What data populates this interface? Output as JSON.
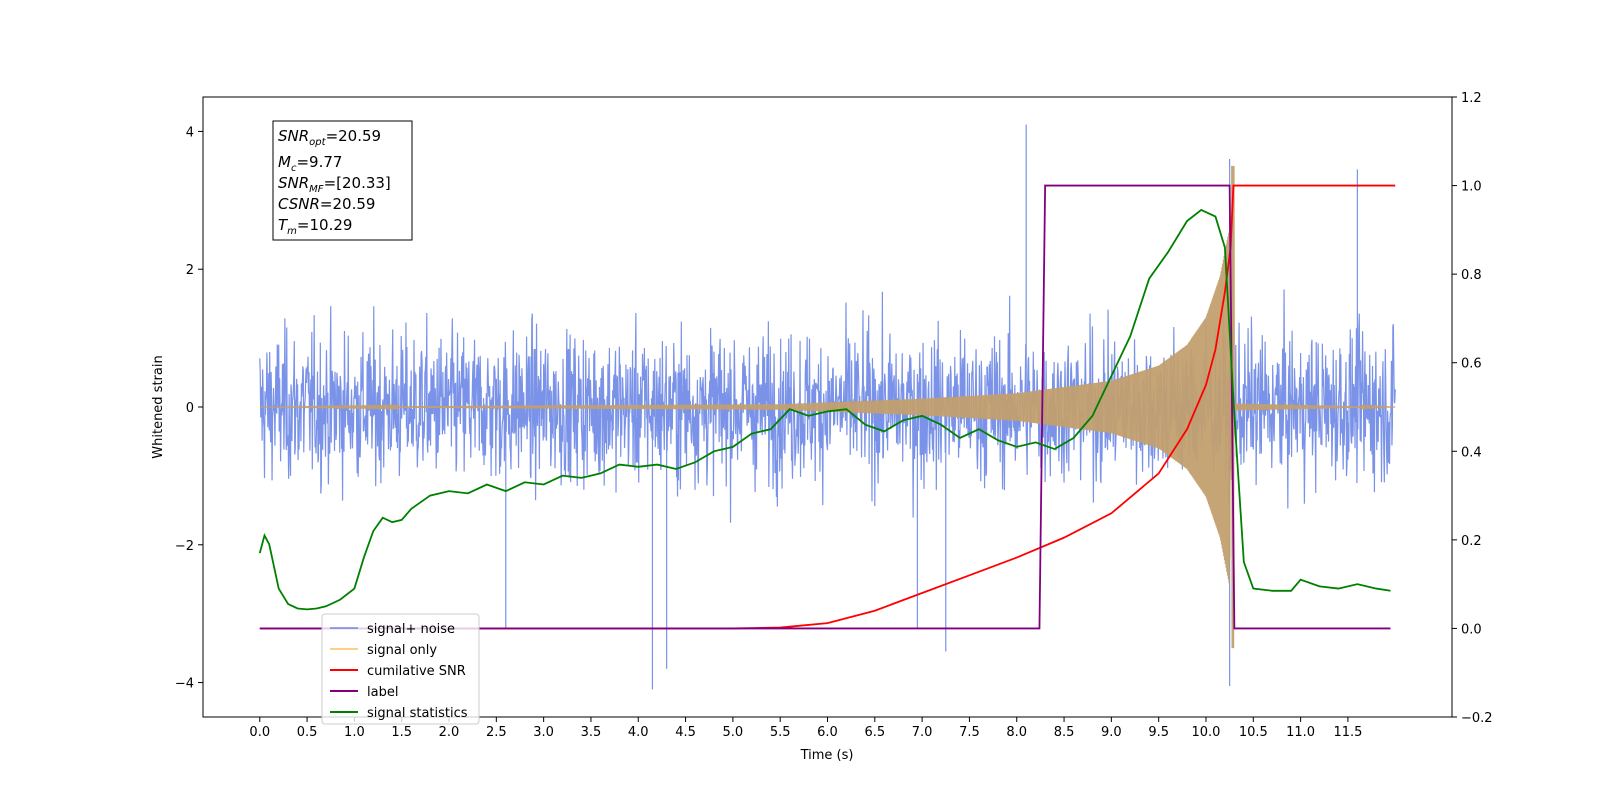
{
  "chart_data": {
    "type": "line",
    "xlabel": "Time (s)",
    "ylabel": "Whitened strain",
    "xlim": [
      -0.6,
      12.6
    ],
    "ylim_left": [
      -4.5,
      4.5
    ],
    "ylim_right": [
      -0.2,
      1.2
    ],
    "x_ticks": [
      "0.0",
      "0.5",
      "1.0",
      "1.5",
      "2.0",
      "2.5",
      "3.0",
      "3.5",
      "4.0",
      "4.5",
      "5.0",
      "5.5",
      "6.0",
      "6.5",
      "7.0",
      "7.5",
      "8.0",
      "8.5",
      "9.0",
      "9.5",
      "10.0",
      "10.5",
      "11.0",
      "11.5"
    ],
    "y_ticks_left": [
      "−4",
      "−2",
      "0",
      "2",
      "4"
    ],
    "y_ticks_right": [
      "−0.2",
      "0.0",
      "0.2",
      "0.4",
      "0.6",
      "0.8",
      "1.0",
      "1.2"
    ],
    "grid": false,
    "legend_position": "lower-left",
    "annotation": {
      "snr_opt": {
        "name": "SNR",
        "sub": "opt",
        "value": "=20.59"
      },
      "mc": {
        "name": "M",
        "sub": "c",
        "value": "=9.77"
      },
      "snr_mf": {
        "name": "SNR",
        "sub": "MF",
        "value": "=[20.33]"
      },
      "csnr": {
        "name": "CSNR",
        "value": "=20.59"
      },
      "tm": {
        "name": "T",
        "sub": "m",
        "value": "=10.29"
      }
    },
    "series": [
      {
        "name": "signal+ noise",
        "axis": "left",
        "color": "#6b87e6",
        "x_range": [
          0.0,
          12.0
        ],
        "envelope_typical": [
          -1.8,
          1.9
        ],
        "spikes": [
          [
            2.6,
            -3.2
          ],
          [
            4.15,
            -4.1
          ],
          [
            4.3,
            -3.8
          ],
          [
            8.1,
            4.1
          ],
          [
            10.25,
            3.6
          ],
          [
            10.25,
            -4.05
          ],
          [
            11.6,
            3.45
          ],
          [
            6.95,
            -3.2
          ],
          [
            7.25,
            -3.55
          ]
        ]
      },
      {
        "name": "signal only",
        "axis": "left",
        "color": "#c29f6f",
        "description_points": [
          [
            0,
            0.0
          ],
          [
            5.5,
            0.04
          ],
          [
            7.0,
            0.12
          ],
          [
            8.0,
            0.2
          ],
          [
            9.0,
            0.38
          ],
          [
            9.5,
            0.6
          ],
          [
            9.8,
            0.9
          ],
          [
            10.0,
            1.3
          ],
          [
            10.15,
            1.9
          ],
          [
            10.25,
            2.6
          ],
          [
            10.28,
            -3.5
          ],
          [
            10.3,
            0.05
          ],
          [
            12.0,
            0.0
          ]
        ]
      },
      {
        "name": "cumilative SNR",
        "axis": "right",
        "color": "#ff0000",
        "points": [
          [
            0.0,
            0.0
          ],
          [
            5.0,
            0.0
          ],
          [
            5.5,
            0.002
          ],
          [
            6.0,
            0.012
          ],
          [
            6.5,
            0.04
          ],
          [
            7.0,
            0.08
          ],
          [
            7.5,
            0.12
          ],
          [
            8.0,
            0.16
          ],
          [
            8.5,
            0.205
          ],
          [
            9.0,
            0.26
          ],
          [
            9.5,
            0.35
          ],
          [
            9.8,
            0.45
          ],
          [
            10.0,
            0.55
          ],
          [
            10.1,
            0.63
          ],
          [
            10.2,
            0.76
          ],
          [
            10.26,
            0.86
          ],
          [
            10.29,
            1.0
          ],
          [
            12.0,
            1.0
          ]
        ]
      },
      {
        "name": "label",
        "axis": "right",
        "color": "#800080",
        "points": [
          [
            0.0,
            0.0
          ],
          [
            8.24,
            0.0
          ],
          [
            8.3,
            1.0
          ],
          [
            10.25,
            1.0
          ],
          [
            10.3,
            0.0
          ],
          [
            11.95,
            0.0
          ]
        ]
      },
      {
        "name": "signal statistics",
        "axis": "right",
        "color": "#008000",
        "points": [
          [
            0.0,
            0.17
          ],
          [
            0.05,
            0.21
          ],
          [
            0.1,
            0.19
          ],
          [
            0.2,
            0.09
          ],
          [
            0.3,
            0.055
          ],
          [
            0.4,
            0.045
          ],
          [
            0.5,
            0.043
          ],
          [
            0.6,
            0.045
          ],
          [
            0.7,
            0.05
          ],
          [
            0.85,
            0.065
          ],
          [
            1.0,
            0.09
          ],
          [
            1.1,
            0.16
          ],
          [
            1.2,
            0.22
          ],
          [
            1.3,
            0.25
          ],
          [
            1.4,
            0.24
          ],
          [
            1.5,
            0.245
          ],
          [
            1.6,
            0.27
          ],
          [
            1.8,
            0.3
          ],
          [
            2.0,
            0.31
          ],
          [
            2.2,
            0.305
          ],
          [
            2.4,
            0.325
          ],
          [
            2.6,
            0.31
          ],
          [
            2.8,
            0.33
          ],
          [
            3.0,
            0.325
          ],
          [
            3.2,
            0.345
          ],
          [
            3.4,
            0.34
          ],
          [
            3.6,
            0.35
          ],
          [
            3.8,
            0.37
          ],
          [
            4.0,
            0.365
          ],
          [
            4.2,
            0.37
          ],
          [
            4.4,
            0.36
          ],
          [
            4.6,
            0.375
          ],
          [
            4.8,
            0.4
          ],
          [
            5.0,
            0.41
          ],
          [
            5.2,
            0.44
          ],
          [
            5.4,
            0.45
          ],
          [
            5.6,
            0.495
          ],
          [
            5.8,
            0.48
          ],
          [
            6.0,
            0.49
          ],
          [
            6.2,
            0.495
          ],
          [
            6.4,
            0.46
          ],
          [
            6.6,
            0.445
          ],
          [
            6.8,
            0.47
          ],
          [
            7.0,
            0.48
          ],
          [
            7.2,
            0.46
          ],
          [
            7.4,
            0.43
          ],
          [
            7.6,
            0.45
          ],
          [
            7.8,
            0.425
          ],
          [
            8.0,
            0.41
          ],
          [
            8.2,
            0.42
          ],
          [
            8.4,
            0.405
          ],
          [
            8.6,
            0.43
          ],
          [
            8.8,
            0.48
          ],
          [
            9.0,
            0.57
          ],
          [
            9.2,
            0.66
          ],
          [
            9.4,
            0.79
          ],
          [
            9.6,
            0.85
          ],
          [
            9.8,
            0.92
          ],
          [
            9.95,
            0.945
          ],
          [
            10.1,
            0.93
          ],
          [
            10.2,
            0.86
          ],
          [
            10.3,
            0.48
          ],
          [
            10.4,
            0.15
          ],
          [
            10.5,
            0.09
          ],
          [
            10.7,
            0.085
          ],
          [
            10.9,
            0.085
          ],
          [
            11.0,
            0.11
          ],
          [
            11.2,
            0.095
          ],
          [
            11.4,
            0.09
          ],
          [
            11.6,
            0.1
          ],
          [
            11.8,
            0.09
          ],
          [
            11.95,
            0.085
          ]
        ]
      }
    ]
  }
}
